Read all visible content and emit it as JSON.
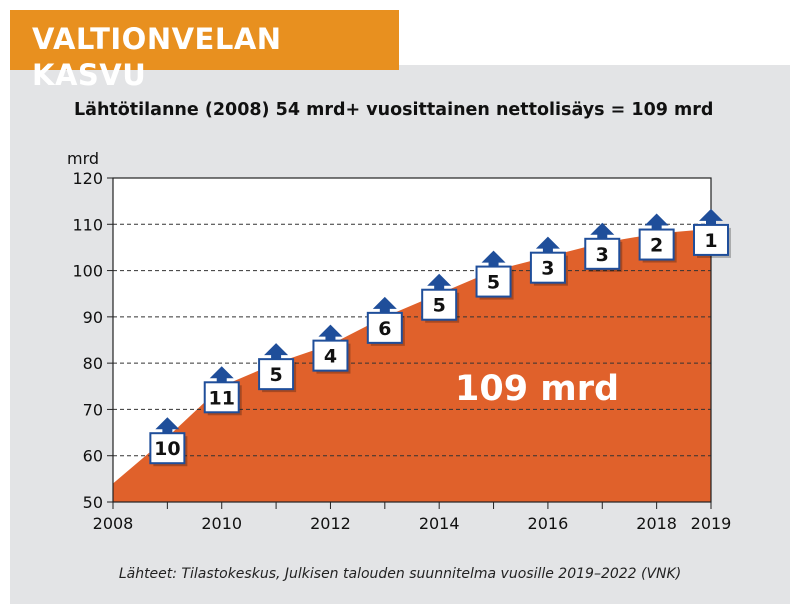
{
  "header": {
    "title": "VALTIONVELAN KASVU"
  },
  "chart_data": {
    "type": "area",
    "subtitle": "Lähtötilanne (2008) 54 mrd+ vuosittainen nettolisäys = 109 mrd",
    "ylabel": "mrd",
    "xlabel": "",
    "ylim": [
      50,
      120
    ],
    "xlim": [
      2008,
      2019
    ],
    "yticks": [
      50,
      60,
      70,
      80,
      90,
      100,
      110,
      120
    ],
    "xticks": [
      2008,
      2010,
      2012,
      2014,
      2016,
      2018,
      2019
    ],
    "grid": true,
    "area_color": "#e0612b",
    "series": [
      {
        "x": [
          2008,
          2009,
          2010,
          2011,
          2012,
          2013,
          2014,
          2015,
          2016,
          2017,
          2018,
          2019
        ],
        "values": [
          54,
          64,
          75,
          80,
          84,
          90,
          95,
          100,
          103,
          106,
          108,
          109
        ]
      }
    ],
    "annual_increments": [
      {
        "year": 2009,
        "value": "10"
      },
      {
        "year": 2010,
        "value": "11"
      },
      {
        "year": 2011,
        "value": "5"
      },
      {
        "year": 2012,
        "value": "4"
      },
      {
        "year": 2013,
        "value": "6"
      },
      {
        "year": 2014,
        "value": "5"
      },
      {
        "year": 2015,
        "value": "5"
      },
      {
        "year": 2016,
        "value": "3"
      },
      {
        "year": 2017,
        "value": "3"
      },
      {
        "year": 2018,
        "value": "2"
      },
      {
        "year": 2019,
        "value": "1"
      }
    ],
    "arrow_color": "#1f4e9a",
    "annotation": "109 mrd"
  },
  "footer": {
    "source": "Lähteet: Tilastokeskus, Julkisen talouden suunnitelma vuosille 2019–2022 (VNK)"
  }
}
